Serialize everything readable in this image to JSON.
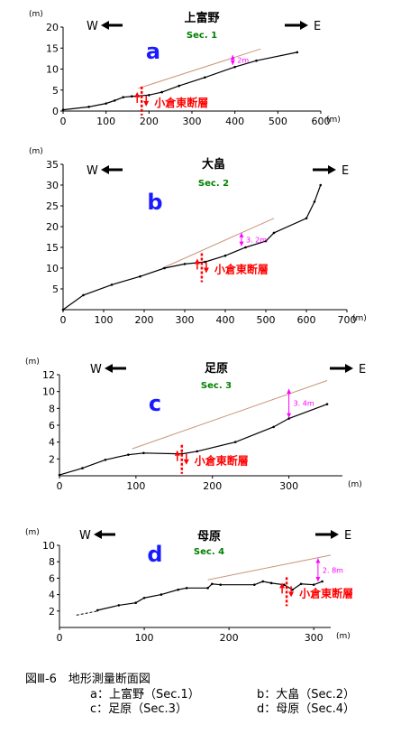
{
  "caption": {
    "title": "図Ⅲ-6　地形測量断面図",
    "items": [
      "a：上富野（Sec.1）",
      "b：大畠（Sec.2）",
      "c：足原（Sec.3）",
      "d：母原（Sec.4）"
    ]
  },
  "colors": {
    "profile": "#000000",
    "trend": "#c8957a",
    "offset": "#ff00ff",
    "fault": "#ff0000",
    "panel_letter": "#1a1aff",
    "section": "#008000"
  },
  "chart_data": [
    {
      "type": "line",
      "letter": "a",
      "site": "上富野",
      "section": "Sec. 1",
      "y_unit": "(m)",
      "x_unit": "(m)",
      "west": "W",
      "east": "E",
      "xlim": [
        0,
        600
      ],
      "ylim": [
        0,
        20
      ],
      "xticks": [
        0,
        100,
        200,
        300,
        400,
        500,
        600
      ],
      "yticks": [
        0,
        5,
        10,
        15,
        20
      ],
      "profile": {
        "x": [
          0,
          60,
          100,
          120,
          140,
          160,
          200,
          230,
          270,
          330,
          400,
          450,
          545
        ],
        "y": [
          0.3,
          1.0,
          1.8,
          2.5,
          3.3,
          3.5,
          3.8,
          4.5,
          6.0,
          8.0,
          10.5,
          12.0,
          14.0
        ]
      },
      "trend": {
        "x": [
          175,
          460
        ],
        "y": [
          5.4,
          14.8
        ]
      },
      "offset": {
        "x": 395,
        "y_top": 13.3,
        "y_bottom": 11.0,
        "label": "2m"
      },
      "fault": {
        "x": 183,
        "label": "小倉東断層"
      }
    },
    {
      "type": "line",
      "letter": "b",
      "site": "大畠",
      "section": "Sec. 2",
      "y_unit": "(m)",
      "x_unit": "(m)",
      "west": "W",
      "east": "E",
      "xlim": [
        0,
        700
      ],
      "ylim": [
        0,
        35
      ],
      "xticks": [
        0,
        100,
        200,
        300,
        400,
        500,
        600,
        700
      ],
      "yticks": [
        5,
        10,
        15,
        20,
        25,
        30,
        35
      ],
      "profile": {
        "x": [
          0,
          50,
          120,
          190,
          250,
          300,
          350,
          400,
          450,
          500,
          520,
          600,
          620,
          635
        ],
        "y": [
          0,
          3.5,
          6.0,
          8.0,
          10.0,
          11.0,
          11.5,
          13.0,
          15.0,
          16.5,
          18.5,
          22.0,
          26.0,
          30.0
        ]
      },
      "trend": {
        "x": [
          245,
          520
        ],
        "y": [
          10.0,
          22.0
        ]
      },
      "offset": {
        "x": 440,
        "y_top": 18.5,
        "y_bottom": 15.3,
        "label": "3. 2m"
      },
      "fault": {
        "x": 342,
        "label": "小倉東断層"
      }
    },
    {
      "type": "line",
      "letter": "c",
      "site": "足原",
      "section": "Sec. 3",
      "y_unit": "(m)",
      "x_unit": "(m)",
      "west": "W",
      "east": "E",
      "xlim": [
        0,
        370
      ],
      "ylim": [
        0,
        12
      ],
      "xticks": [
        0,
        100,
        200,
        300
      ],
      "yticks": [
        2,
        4,
        6,
        8,
        10,
        12
      ],
      "profile": {
        "x": [
          0,
          30,
          60,
          90,
          110,
          160,
          180,
          230,
          280,
          300,
          350
        ],
        "y": [
          0.1,
          0.9,
          1.9,
          2.5,
          2.7,
          2.6,
          2.9,
          4.0,
          5.8,
          6.8,
          8.5
        ]
      },
      "trend": {
        "x": [
          95,
          350
        ],
        "y": [
          3.2,
          11.3
        ]
      },
      "offset": {
        "x": 300,
        "y_top": 10.3,
        "y_bottom": 6.9,
        "label": "3. 4m"
      },
      "fault": {
        "x": 160,
        "label": "小倉東断層"
      }
    },
    {
      "type": "line",
      "letter": "d",
      "site": "母原",
      "section": "Sec. 4",
      "y_unit": "(m)",
      "x_unit": "(m)",
      "west": "W",
      "east": "E",
      "xlim": [
        0,
        320
      ],
      "ylim": [
        0,
        10
      ],
      "xticks": [
        0,
        100,
        200,
        300
      ],
      "yticks": [
        2,
        4,
        6,
        8,
        10
      ],
      "profile_dashed": {
        "x": [
          20,
          45
        ],
        "y": [
          1.5,
          2.0
        ]
      },
      "profile": {
        "x": [
          45,
          70,
          90,
          100,
          120,
          140,
          150,
          175,
          180,
          190,
          230,
          240,
          250,
          265,
          275,
          285,
          300,
          310
        ],
        "y": [
          2.1,
          2.7,
          3.0,
          3.6,
          4.0,
          4.6,
          4.8,
          4.8,
          5.3,
          5.2,
          5.2,
          5.6,
          5.4,
          5.2,
          4.6,
          5.3,
          5.2,
          5.6
        ]
      },
      "trend": {
        "x": [
          175,
          320
        ],
        "y": [
          5.8,
          8.8
        ]
      },
      "offset": {
        "x": 305,
        "y_top": 8.4,
        "y_bottom": 5.6,
        "label": "2. 8m"
      },
      "fault": {
        "x": 268,
        "label": "小倉東断層"
      }
    }
  ]
}
